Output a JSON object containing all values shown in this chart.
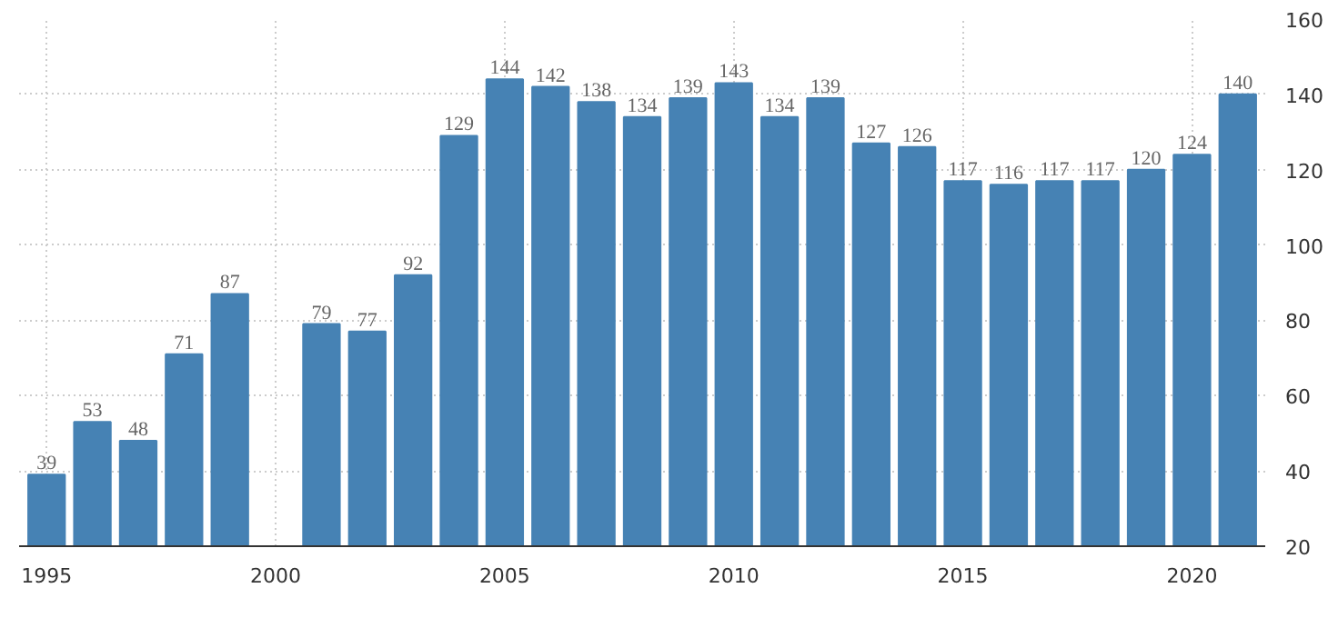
{
  "chart_data": {
    "type": "bar",
    "x": [
      1995,
      1996,
      1997,
      1998,
      1999,
      2000,
      2001,
      2002,
      2003,
      2004,
      2005,
      2006,
      2007,
      2008,
      2009,
      2010,
      2011,
      2012,
      2013,
      2014,
      2015,
      2016,
      2017,
      2018,
      2019,
      2020,
      2021
    ],
    "values": [
      39,
      53,
      48,
      71,
      87,
      null,
      79,
      77,
      92,
      129,
      144,
      142,
      138,
      134,
      139,
      143,
      134,
      139,
      127,
      126,
      117,
      116,
      117,
      117,
      120,
      124,
      140
    ],
    "color": "#4682b4",
    "xlim": [
      1994.4,
      2021.6
    ],
    "xticks": [
      1995,
      2000,
      2005,
      2010,
      2015,
      2020
    ],
    "ylim": [
      20,
      160
    ],
    "yticks": [
      20,
      40,
      60,
      80,
      100,
      120,
      140,
      160
    ],
    "grid": true,
    "data_labels": true
  }
}
